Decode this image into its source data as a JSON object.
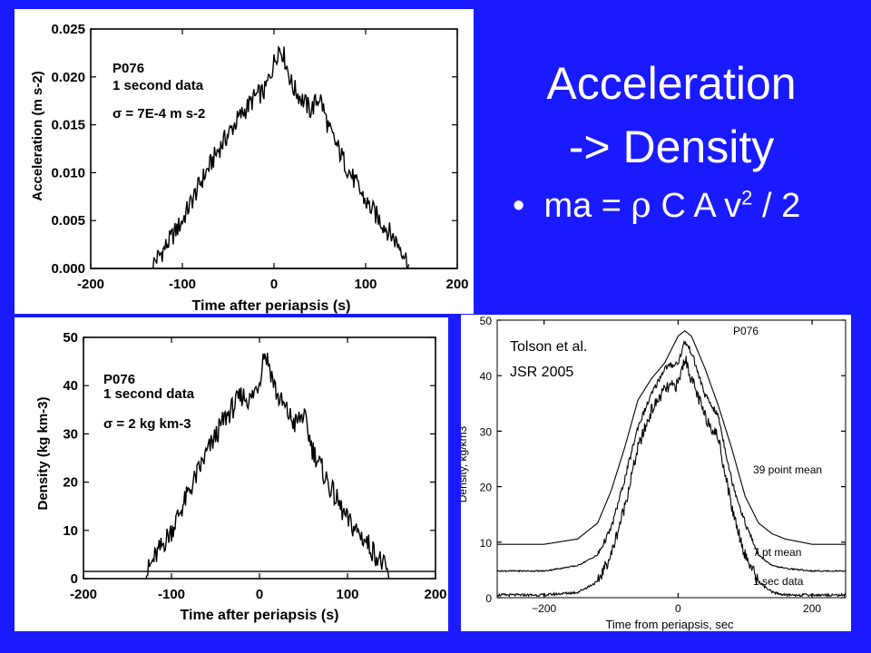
{
  "slide": {
    "title_line1": "Acceleration",
    "title_line2": "-> Density",
    "bullet_symbol": "•",
    "bullet_prefix": "ma = ",
    "bullet_rho": "ρ",
    "bullet_middle": " C A v",
    "bullet_sup": "2",
    "bullet_suffix": " / 2",
    "background_color": "#1a1aff"
  },
  "chart_data": [
    {
      "type": "line",
      "id": "acceleration",
      "xlabel": "Time after periapsis (s)",
      "ylabel": "Acceleration (m s-2)",
      "xlim": [
        -200,
        200
      ],
      "ylim": [
        0,
        0.025
      ],
      "xticks": [
        "-200",
        "-100",
        "0",
        "100",
        "200"
      ],
      "yticks": [
        "0.000",
        "0.005",
        "0.010",
        "0.015",
        "0.020",
        "0.025"
      ],
      "annotation": [
        "P076",
        "1 second data",
        "σ = 7E-4 m s-2"
      ],
      "series": [
        {
          "x": [
            -132,
            -120,
            -100,
            -80,
            -60,
            -40,
            -20,
            -10,
            0,
            5,
            10,
            20,
            40,
            50,
            60,
            80,
            100,
            120,
            140,
            147
          ],
          "y": [
            0.0005,
            0.002,
            0.005,
            0.009,
            0.0125,
            0.0155,
            0.018,
            0.0185,
            0.0215,
            0.023,
            0.0225,
            0.019,
            0.0165,
            0.018,
            0.0145,
            0.0105,
            0.007,
            0.0045,
            0.002,
            0.0003
          ]
        }
      ],
      "baseline": 0
    },
    {
      "type": "line",
      "id": "density",
      "xlabel": "Time after periapsis (s)",
      "ylabel": "Density (kg km-3)",
      "xlim": [
        -200,
        200
      ],
      "ylim": [
        0,
        50
      ],
      "xticks": [
        "-200",
        "-100",
        "0",
        "100",
        "200"
      ],
      "yticks": [
        "0",
        "10",
        "20",
        "30",
        "40",
        "50"
      ],
      "annotation": [
        "P076",
        "1 second data",
        "σ = 2 kg km-3"
      ],
      "series": [
        {
          "x": [
            -130,
            -120,
            -100,
            -80,
            -60,
            -40,
            -20,
            -10,
            0,
            5,
            10,
            20,
            40,
            50,
            60,
            80,
            100,
            120,
            140,
            147
          ],
          "y": [
            0.5,
            4,
            10,
            18,
            26,
            33,
            38,
            37,
            41,
            47,
            45,
            38,
            32,
            34,
            27,
            19,
            12,
            8,
            3,
            0.5
          ]
        }
      ],
      "baseline": 1.5
    },
    {
      "type": "line",
      "id": "tolson",
      "xlabel": "Time from periapsis, sec",
      "ylabel": "Density, kg/km3",
      "xlim": [
        -270,
        250
      ],
      "ylim": [
        0,
        52
      ],
      "xticks": [
        "−200",
        "0",
        "200"
      ],
      "yticks": [
        "0",
        "10",
        "20",
        "30",
        "40",
        "50"
      ],
      "title": "P076",
      "annotation": [
        "Tolson et al.",
        "JSR 2005"
      ],
      "series": [
        {
          "name": "39 point mean",
          "x": [
            -270,
            -200,
            -150,
            -120,
            -100,
            -80,
            -60,
            -40,
            -20,
            0,
            10,
            20,
            40,
            60,
            80,
            100,
            120,
            140,
            160,
            200,
            250
          ],
          "y": [
            10,
            10,
            11,
            14,
            20,
            28,
            37,
            41,
            44,
            49,
            50,
            49,
            43,
            36,
            28,
            19,
            14,
            12,
            11,
            10,
            10
          ]
        },
        {
          "name": "7 pt mean",
          "x": [
            -270,
            -200,
            -150,
            -120,
            -100,
            -80,
            -60,
            -40,
            -20,
            0,
            10,
            20,
            40,
            60,
            80,
            100,
            120,
            140,
            160,
            200,
            250
          ],
          "y": [
            5,
            5,
            6,
            8,
            13,
            22,
            32,
            38,
            43,
            44,
            48,
            46,
            38,
            34,
            22,
            14,
            8,
            6,
            5.5,
            5,
            5
          ]
        },
        {
          "name": "1 sec data",
          "x": [
            -270,
            -200,
            -150,
            -120,
            -100,
            -80,
            -60,
            -40,
            -20,
            0,
            10,
            20,
            40,
            60,
            80,
            100,
            120,
            140,
            160,
            200,
            250
          ],
          "y": [
            0.5,
            0.5,
            1,
            3,
            8,
            17,
            28,
            35,
            39,
            40,
            45,
            41,
            34,
            30,
            17,
            8,
            3,
            1,
            0.5,
            0.5,
            0.5
          ]
        }
      ],
      "series_label_texts": [
        "39 point mean",
        "7 pt mean",
        "1 sec data"
      ]
    }
  ]
}
